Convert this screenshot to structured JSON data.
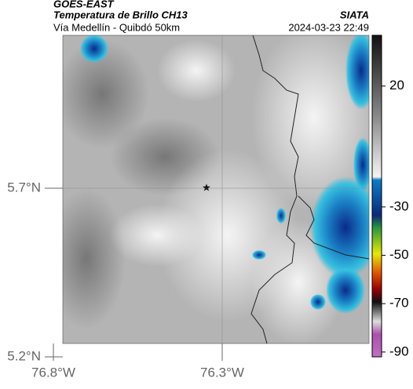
{
  "header": {
    "title": "GOES-EAST",
    "subtitle": "Temperatura de Brillo CH13",
    "route": "Vía Medellín - Quibdó 50km",
    "source": "SIATA",
    "datetime": "2024-03-23 22:49"
  },
  "map": {
    "lat_ticks": [
      {
        "value": 5.7,
        "label": "5.7°N"
      },
      {
        "value": 5.2,
        "label": "5.2°N"
      }
    ],
    "lon_ticks": [
      {
        "value": -76.8,
        "label": "76.8°W"
      },
      {
        "value": -76.3,
        "label": "76.3°W"
      }
    ]
  },
  "colorbar": {
    "lim": [
      -92,
      41
    ],
    "ticks": [
      20,
      -30,
      -50,
      -70,
      -90
    ]
  }
}
